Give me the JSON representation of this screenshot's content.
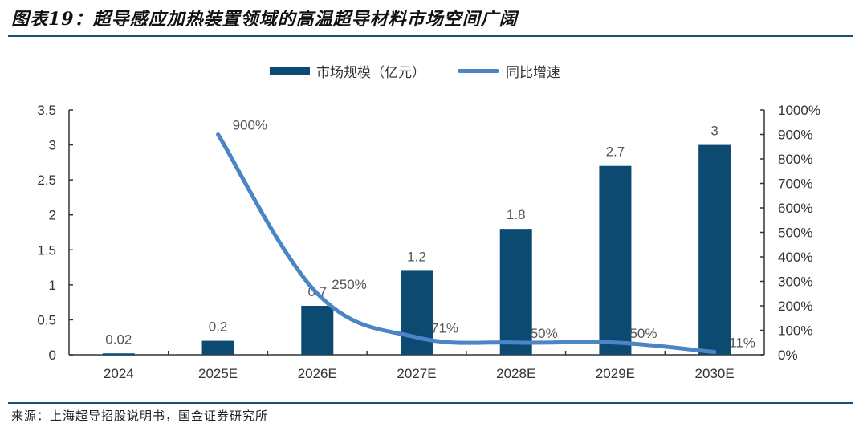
{
  "title": "图表19：超导感应加热装置领域的高温超导材料市场空间广阔",
  "source": "来源：上海超导招股说明书，国金证券研究所",
  "legend": {
    "bar_label": "市场规模（亿元）",
    "line_label": "同比增速"
  },
  "colors": {
    "bar": "#0d4a72",
    "line": "#4a86c5",
    "rule": "#1d4e72"
  },
  "chart_data": {
    "type": "bar+line",
    "title": "超导感应加热装置领域的高温超导材料市场空间广阔",
    "categories": [
      "2024",
      "2025E",
      "2026E",
      "2027E",
      "2028E",
      "2029E",
      "2030E"
    ],
    "series": [
      {
        "name": "市场规模（亿元）",
        "type": "bar",
        "axis": "left",
        "values": [
          0.02,
          0.2,
          0.7,
          1.2,
          1.8,
          2.7,
          3
        ]
      },
      {
        "name": "同比增速",
        "type": "line",
        "axis": "right",
        "values": [
          null,
          900,
          250,
          71,
          50,
          50,
          11
        ],
        "unit": "%"
      }
    ],
    "bar_labels": [
      "0.02",
      "0.2",
      "0.7",
      "1.2",
      "1.8",
      "2.7",
      "3"
    ],
    "line_labels": [
      "",
      "900%",
      "250%",
      "71%",
      "50%",
      "50%",
      "11%"
    ],
    "left_axis": {
      "ylim": [
        0,
        3.5
      ],
      "ticks": [
        "0",
        "0.5",
        "1",
        "1.5",
        "2",
        "2.5",
        "3",
        "3.5"
      ]
    },
    "right_axis": {
      "ylim": [
        0,
        1000
      ],
      "ticks": [
        "0%",
        "100%",
        "200%",
        "300%",
        "400%",
        "500%",
        "600%",
        "700%",
        "800%",
        "900%",
        "1000%"
      ]
    },
    "xlabel": "",
    "ylabel": "",
    "legend_position": "top",
    "grid": false
  }
}
